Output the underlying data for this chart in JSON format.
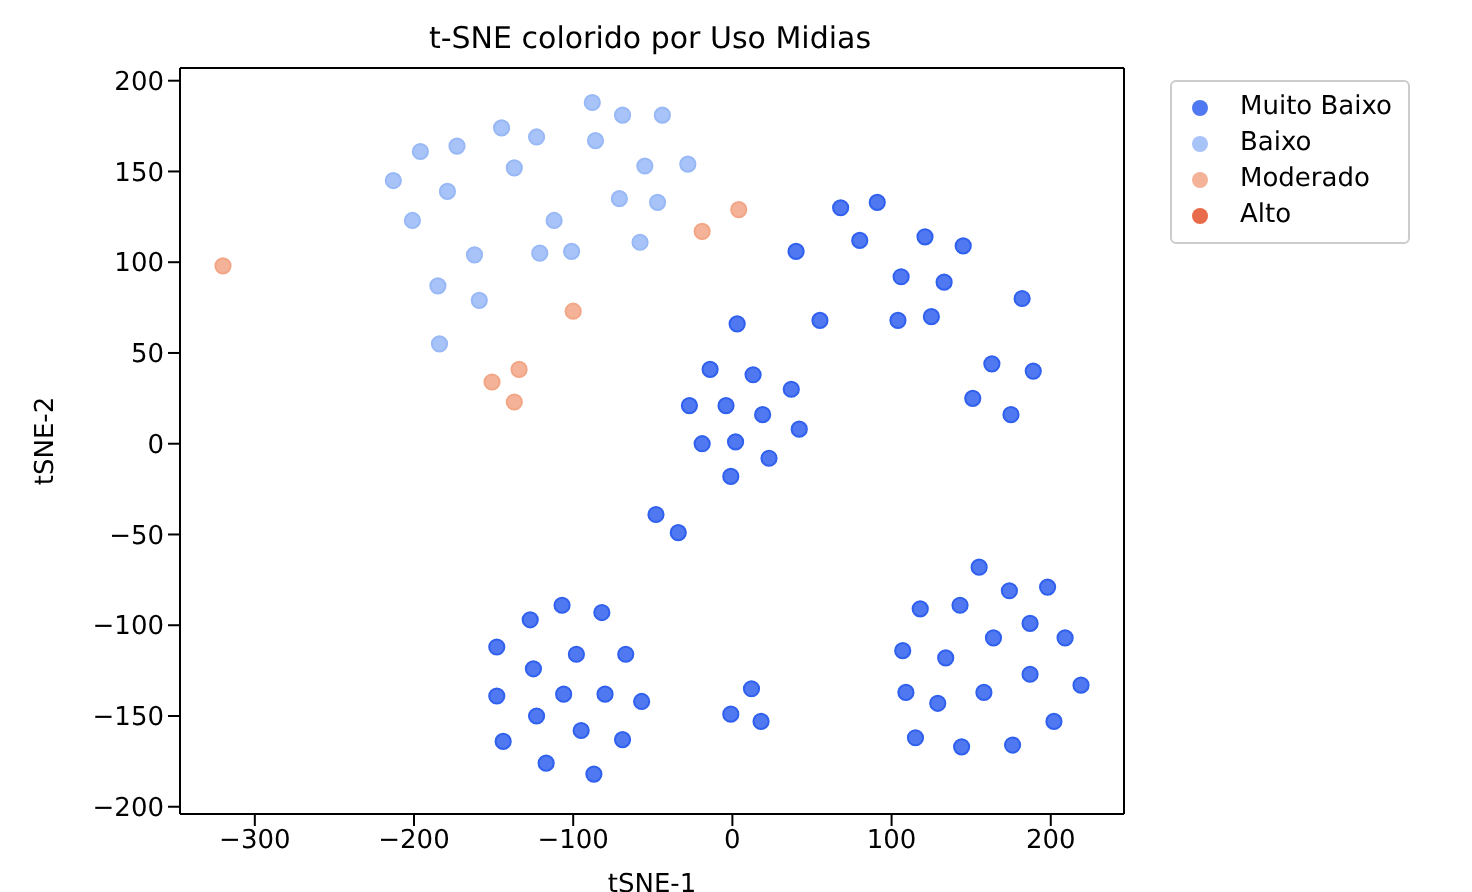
{
  "chart_data": {
    "type": "scatter",
    "title": "t-SNE colorido por Uso Midias",
    "xlabel": "tSNE-1",
    "ylabel": "tSNE-2",
    "xlim": [
      -347,
      246
    ],
    "ylim": [
      -204,
      207
    ],
    "xticks": [
      -300,
      -200,
      -100,
      0,
      100,
      200
    ],
    "yticks": [
      -200,
      -150,
      -100,
      -50,
      0,
      50,
      100,
      150,
      200
    ],
    "legend": "top right",
    "marker": "circle",
    "series": [
      {
        "name": "Muito Baixo",
        "color": "#3060ee",
        "x": [
          68,
          91,
          40,
          80,
          121,
          145,
          106,
          133,
          182,
          3,
          55,
          104,
          125,
          163,
          189,
          151,
          175,
          -14,
          13,
          37,
          -27,
          -4,
          19,
          42,
          -19,
          2,
          23,
          -1,
          -48,
          -34,
          155,
          174,
          198,
          118,
          143,
          187,
          164,
          209,
          107,
          134,
          187,
          219,
          109,
          129,
          158,
          202,
          115,
          144,
          176,
          12,
          -1,
          18,
          -107,
          -82,
          -127,
          -148,
          -98,
          -67,
          -125,
          -148,
          -106,
          -80,
          -57,
          -123,
          -95,
          -69,
          -144,
          -117,
          -87
        ],
        "values": [
          130,
          133,
          106,
          112,
          114,
          109,
          92,
          89,
          80,
          66,
          68,
          68,
          70,
          44,
          40,
          25,
          16,
          41,
          38,
          30,
          21,
          21,
          16,
          8,
          0,
          1,
          -8,
          -18,
          -39,
          -49,
          -68,
          -81,
          -79,
          -91,
          -89,
          -99,
          -107,
          -107,
          -114,
          -118,
          -127,
          -133,
          -137,
          -143,
          -137,
          -153,
          -162,
          -167,
          -166,
          -135,
          -149,
          -153,
          -89,
          -93,
          -97,
          -112,
          -116,
          -116,
          -124,
          -139,
          -138,
          -138,
          -142,
          -150,
          -158,
          -163,
          -164,
          -176,
          -182
        ]
      },
      {
        "name": "Baixo",
        "color": "#98b8f6",
        "x": [
          -88,
          -69,
          -44,
          -145,
          -123,
          -196,
          -173,
          -86,
          -137,
          -55,
          -28,
          -213,
          -179,
          -71,
          -47,
          -201,
          -112,
          -58,
          -162,
          -121,
          -101,
          -185,
          -159,
          -184
        ],
        "values": [
          188,
          181,
          181,
          174,
          169,
          161,
          164,
          167,
          152,
          153,
          154,
          145,
          139,
          135,
          133,
          123,
          123,
          111,
          104,
          105,
          106,
          87,
          79,
          55
        ]
      },
      {
        "name": "Moderado",
        "color": "#f2a686",
        "x": [
          -320,
          4,
          -19,
          -100,
          -134,
          -151,
          -137
        ],
        "values": [
          98,
          129,
          117,
          73,
          41,
          34,
          23
        ]
      },
      {
        "name": "Alto",
        "color": "#e4512c"
      }
    ]
  }
}
